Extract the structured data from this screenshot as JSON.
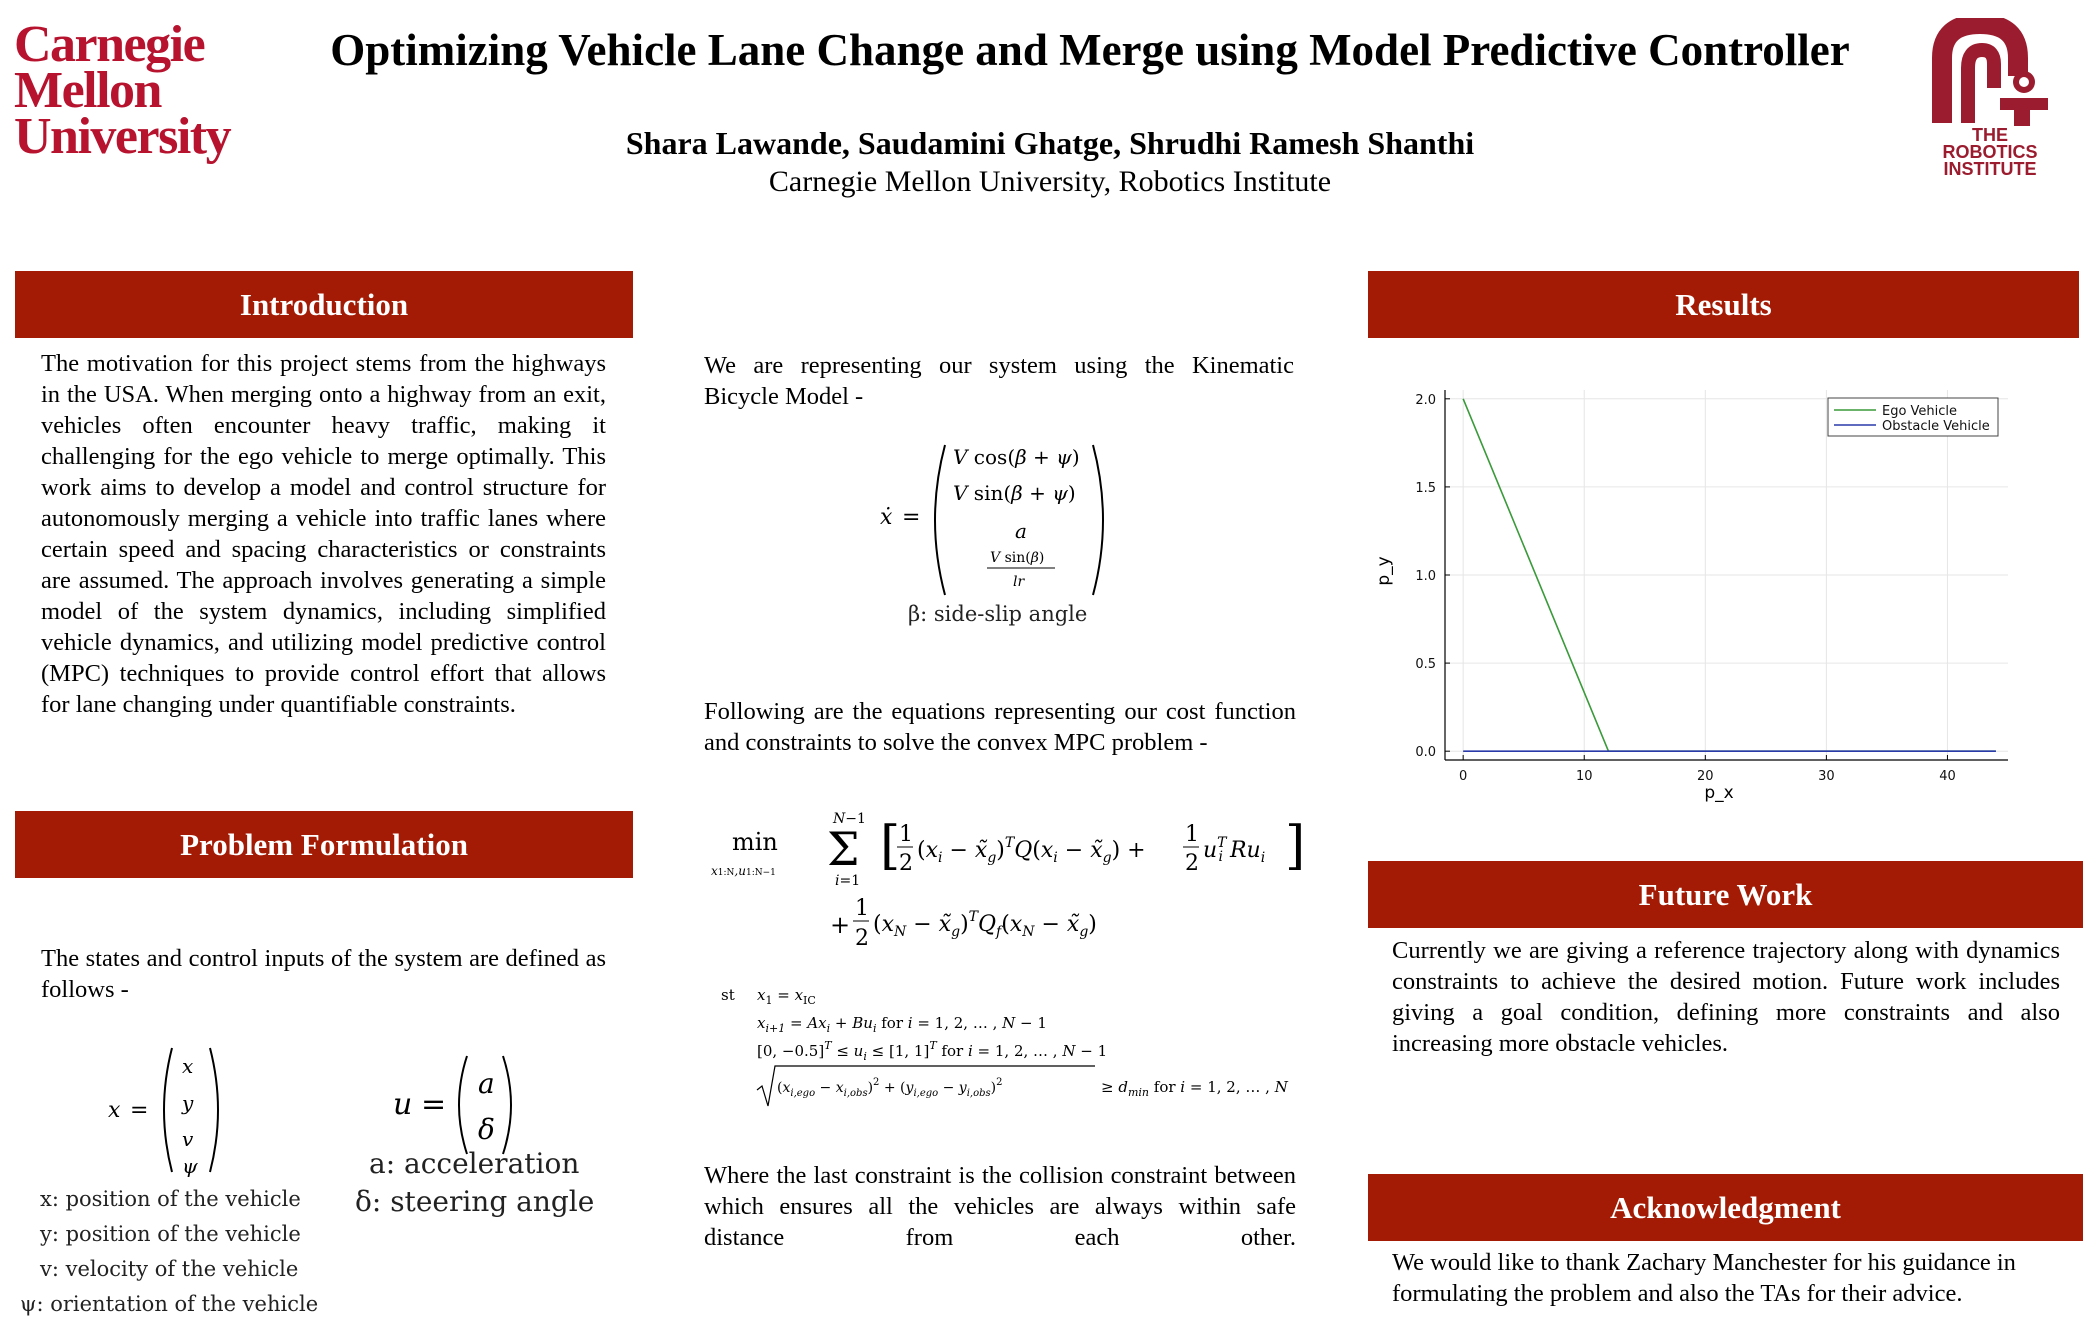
{
  "header": {
    "logo_left_lines": [
      "Carnegie",
      "Mellon",
      "University"
    ],
    "title": "Optimizing Vehicle Lane Change and Merge using Model Predictive Controller",
    "authors": "Shara Lawande, Saudamini Ghatge, Shrudhi Ramesh Shanthi",
    "affiliation": "Carnegie Mellon University, Robotics Institute",
    "logo_right_lines": [
      "THE",
      "ROBOTICS",
      "INSTITUTE"
    ]
  },
  "introduction": {
    "heading": "Introduction",
    "body": "The motivation for this project stems from the highways in the USA. When merging onto a highway from an exit, vehicles often encounter heavy traffic, making it challenging for the ego vehicle to merge optimally. This work aims to develop a model and control structure for autonomously merging a vehicle into traffic lanes where certain speed and spacing characteristics or constraints are assumed. The approach involves generating a simple model of the system dynamics, including simplified vehicle dynamics, and utilizing model predictive control (MPC) techniques to provide control effort that allows for lane changing under quantifiable constraints."
  },
  "problem": {
    "heading": "Problem Formulation",
    "body": "The states and control inputs of the system are defined as follows -",
    "state_legend": [
      "x: position of the vehicle",
      "y: position of the vehicle",
      "v: velocity of the vehicle",
      "ψ: orientation of the vehicle"
    ],
    "input_legend": [
      "a: acceleration",
      "δ: steering angle"
    ]
  },
  "middle": {
    "model_text": "We are representing our system using the Kinematic Bicycle Model -",
    "sideslip_label": "β: side-slip angle",
    "cost_text": "Following are the equations representing our cost function and constraints to solve the convex MPC problem -",
    "constraint_text": "Where the last constraint is the collision constraint between which ensures all the vehicles are always within safe distance from each other."
  },
  "results": {
    "heading": "Results"
  },
  "future": {
    "heading": "Future Work",
    "body": "Currently we are giving a reference trajectory along with dynamics constraints to achieve the desired motion. Future work includes giving a goal condition, defining more constraints and also increasing more obstacle vehicles."
  },
  "ack": {
    "heading": "Acknowledgment",
    "body": "We would like to thank Zachary Manchester for his guidance in formulating the problem and also the TAs for their advice."
  },
  "chart_data": {
    "type": "line",
    "xlabel": "p_x",
    "ylabel": "p_y",
    "xlim": [
      -1.5,
      45
    ],
    "ylim": [
      -0.05,
      2.05
    ],
    "xticks": [
      0,
      10,
      20,
      30,
      40
    ],
    "yticks": [
      0.0,
      0.5,
      1.0,
      1.5,
      2.0
    ],
    "ytick_labels": [
      "0.0",
      "0.5",
      "1.0",
      "1.5",
      "2.0"
    ],
    "grid": true,
    "legend_position": "top-right",
    "series": [
      {
        "name": "Ego Vehicle",
        "color": "#3a9a3a",
        "x": [
          0,
          12,
          44
        ],
        "y": [
          2.0,
          0.0,
          0.0
        ]
      },
      {
        "name": "Obstacle Vehicle",
        "color": "#2a3aa8",
        "x": [
          0,
          44
        ],
        "y": [
          0.0,
          0.0
        ]
      }
    ]
  }
}
